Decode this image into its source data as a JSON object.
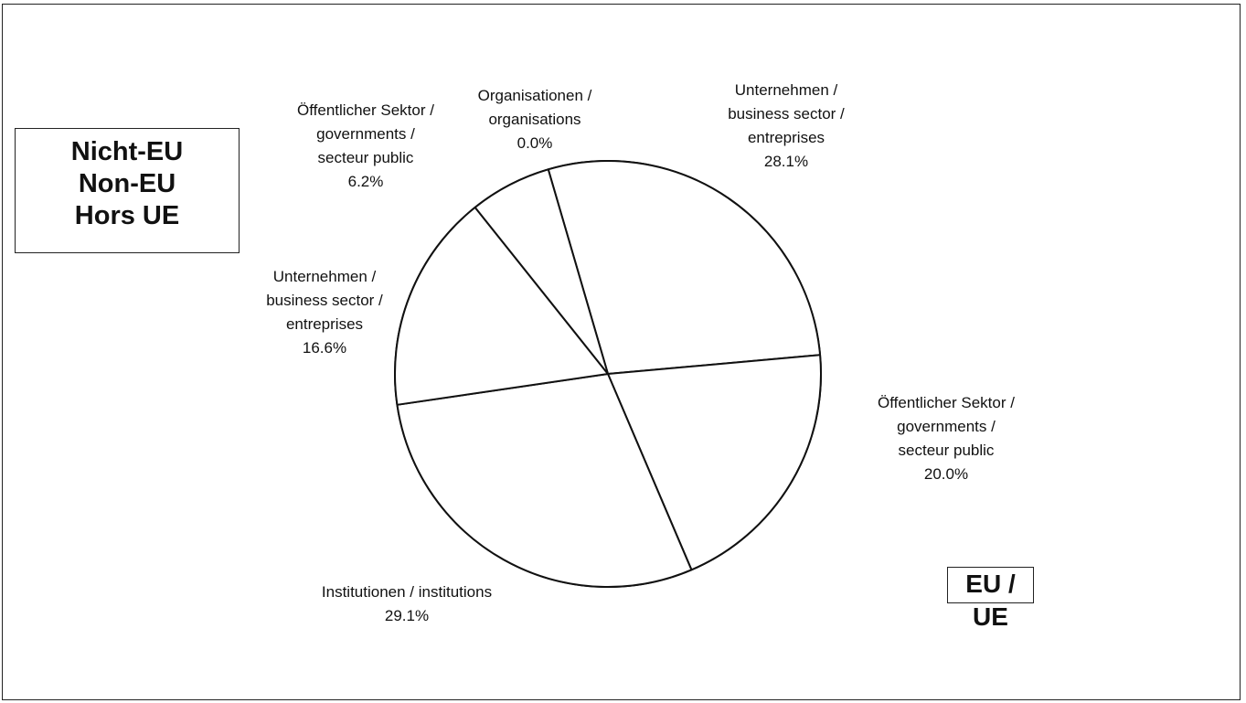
{
  "chart_data": {
    "type": "pie",
    "groups": [
      {
        "name_lines": [
          "Nicht-EU",
          "Non-EU",
          "Hors UE"
        ]
      },
      {
        "name_lines": [
          "EU / UE"
        ]
      }
    ],
    "slices": [
      {
        "group": "Nicht-EU",
        "label_lines": [
          "Organisationen /",
          "organisations"
        ],
        "value": 0.0,
        "value_text": "0.0%"
      },
      {
        "group": "EU",
        "label_lines": [
          "Unternehmen /",
          "business sector /",
          "entreprises"
        ],
        "value": 28.1,
        "value_text": "28.1%"
      },
      {
        "group": "EU",
        "label_lines": [
          "Öffentlicher Sektor /",
          "governments /",
          "secteur public"
        ],
        "value": 20.0,
        "value_text": "20.0%"
      },
      {
        "group": "EU",
        "label_lines": [
          "Institutionen / institutions"
        ],
        "value": 29.1,
        "value_text": "29.1%"
      },
      {
        "group": "Nicht-EU",
        "label_lines": [
          "Unternehmen /",
          "business sector /",
          "entreprises"
        ],
        "value": 16.6,
        "value_text": "16.6%"
      },
      {
        "group": "Nicht-EU",
        "label_lines": [
          "Öffentlicher Sektor /",
          "governments /",
          "secteur public"
        ],
        "value": 6.2,
        "value_text": "6.2%"
      }
    ],
    "legend": "none"
  }
}
